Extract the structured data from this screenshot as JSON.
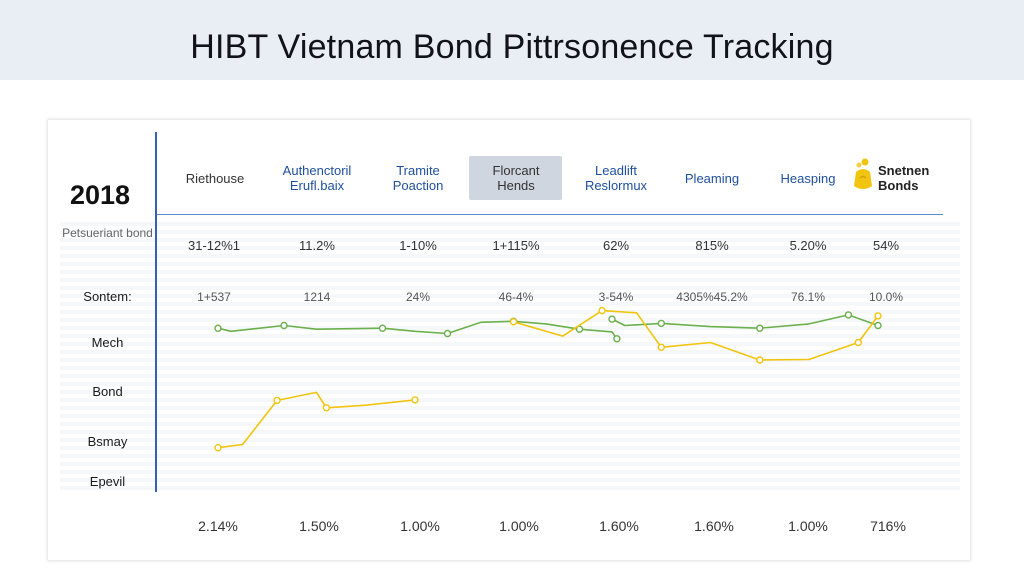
{
  "title": "HIBT Vietnam Bond Pittrsonence Tracking",
  "year": "2018",
  "headers": [
    {
      "lines": [
        "Riethouse"
      ],
      "style": "dark"
    },
    {
      "lines": [
        "Authenctoril",
        "Erufl.baix"
      ],
      "style": "blue"
    },
    {
      "lines": [
        "Tramite",
        "Poaction"
      ],
      "style": "blue"
    },
    {
      "lines": [
        "Florcant",
        "Hends"
      ],
      "style": "selected"
    },
    {
      "lines": [
        "Leadlift",
        "Reslormux"
      ],
      "style": "blue"
    },
    {
      "lines": [
        "Pleaming"
      ],
      "style": "blue"
    },
    {
      "lines": [
        "Heasping"
      ],
      "style": "blue"
    },
    {
      "lines": [
        "Snetnen",
        "Bonds"
      ],
      "style": "bold",
      "icon": "bond-bag-icon"
    }
  ],
  "row_labels": [
    "Petsueriant bond",
    "Sontem:",
    "Mech",
    "Bond",
    "Bsmay",
    "Epevil"
  ],
  "row1": [
    "31-12%1",
    "11.2%",
    "1-10%",
    "1+115%",
    "62%",
    "815%",
    "5.20%",
    "54%"
  ],
  "row2": [
    "1+537",
    "1214",
    "24%",
    "46-4%",
    "3-54%",
    "4305%45.2%",
    "76.1%",
    "10.0%"
  ],
  "footer": [
    "2.14%",
    "1.50%",
    "1.00%",
    "1.00%",
    "1.60%",
    "1.60%",
    "1.00%",
    "716%"
  ],
  "colors": {
    "accent": "#2f62b8",
    "green": "#6ab04c",
    "yellow": "#f1c40f",
    "title_bg": "#e9eef5"
  },
  "chart_data": {
    "type": "line",
    "title": "HIBT Vietnam Bond Pittrsonence Tracking",
    "categories": [
      "Riethouse",
      "Authenctoril Erufl.baix",
      "Tramite Poaction",
      "Florcant Hends",
      "Leadlift Reslormux",
      "Pleaming",
      "Heasping",
      "Snetnen Bonds"
    ],
    "series": [
      {
        "color": "#6ab04c",
        "segments": [
          [
            [
              0.0,
              0.67
            ],
            [
              0.13,
              0.61
            ],
            [
              0.67,
              0.72
            ],
            [
              1.0,
              0.65
            ],
            [
              1.67,
              0.67
            ],
            [
              2.0,
              0.61
            ],
            [
              2.33,
              0.57
            ],
            [
              2.67,
              0.78
            ],
            [
              3.0,
              0.8
            ],
            [
              3.33,
              0.75
            ],
            [
              3.67,
              0.65
            ],
            [
              4.0,
              0.6
            ],
            [
              4.05,
              0.47
            ]
          ],
          [
            [
              4.0,
              0.84
            ],
            [
              4.13,
              0.72
            ],
            [
              4.5,
              0.76
            ],
            [
              5.0,
              0.7
            ],
            [
              5.5,
              0.67
            ],
            [
              6.0,
              0.75
            ],
            [
              6.4,
              0.92
            ],
            [
              6.7,
              0.72
            ]
          ]
        ]
      },
      {
        "color": "#f1c40f",
        "segments": [
          [
            [
              0.0,
              -1.58
            ],
            [
              0.25,
              -1.52
            ],
            [
              0.6,
              -0.69
            ],
            [
              1.0,
              -0.54
            ],
            [
              1.1,
              -0.83
            ],
            [
              1.5,
              -0.78
            ],
            [
              2.0,
              -0.68
            ]
          ],
          [
            [
              3.0,
              0.79
            ],
            [
              3.5,
              0.52
            ],
            [
              3.9,
              1.0
            ],
            [
              4.25,
              0.96
            ],
            [
              4.5,
              0.31
            ],
            [
              5.0,
              0.4
            ],
            [
              5.5,
              0.07
            ],
            [
              6.0,
              0.08
            ],
            [
              6.5,
              0.4
            ],
            [
              6.7,
              0.9
            ]
          ]
        ]
      }
    ],
    "ylim": [
      -2,
      1.2
    ],
    "grid": true
  }
}
